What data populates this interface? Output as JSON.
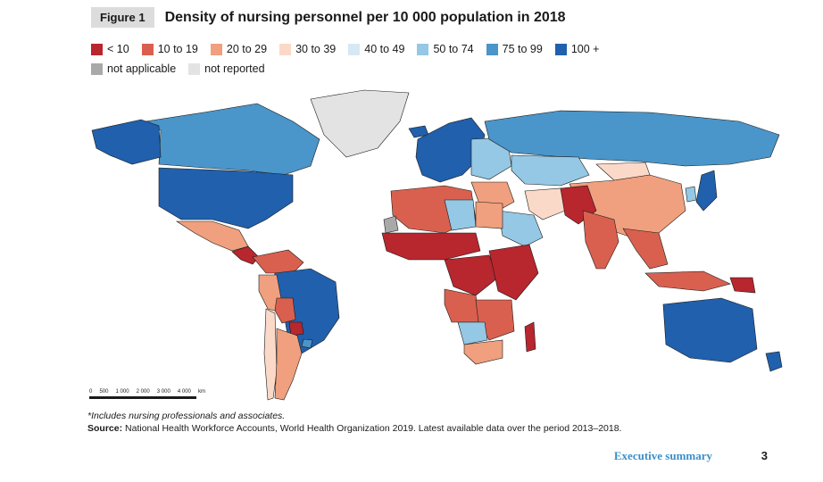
{
  "figure": {
    "label": "Figure 1",
    "title": "Density of nursing personnel per 10 000 population in 2018"
  },
  "legend": {
    "row1": [
      {
        "label": "< 10",
        "color": "#b8262e"
      },
      {
        "label": "10 to 19",
        "color": "#d9604f"
      },
      {
        "label": "20 to 29",
        "color": "#f0a07e"
      },
      {
        "label": "30 to 39",
        "color": "#fbd9c8"
      },
      {
        "label": "40 to 49",
        "color": "#d6e8f4"
      },
      {
        "label": "50 to 74",
        "color": "#95c8e4"
      },
      {
        "label": "75 to 99",
        "color": "#4a95c9"
      },
      {
        "label": "100 +",
        "color": "#2060ac"
      }
    ],
    "row2": [
      {
        "label": "not applicable",
        "color": "#a9a9a9"
      },
      {
        "label": "not reported",
        "color": "#e3e3e3"
      }
    ]
  },
  "map": {
    "regions": [
      {
        "name": "Canada",
        "category": "75 to 99"
      },
      {
        "name": "Alaska",
        "category": "100 +"
      },
      {
        "name": "United States",
        "category": "100 +"
      },
      {
        "name": "Greenland",
        "category": "not reported"
      },
      {
        "name": "Mexico",
        "category": "20 to 29"
      },
      {
        "name": "Central America",
        "category": "< 10"
      },
      {
        "name": "Northern South America",
        "category": "10 to 19"
      },
      {
        "name": "Brazil",
        "category": "100 +"
      },
      {
        "name": "Peru",
        "category": "20 to 29"
      },
      {
        "name": "Bolivia",
        "category": "10 to 19"
      },
      {
        "name": "Paraguay",
        "category": "< 10"
      },
      {
        "name": "Chile",
        "category": "30 to 39"
      },
      {
        "name": "Argentina",
        "category": "20 to 29"
      },
      {
        "name": "Uruguay",
        "category": "75 to 99"
      },
      {
        "name": "Iceland",
        "category": "100 +"
      },
      {
        "name": "Western Europe",
        "category": "100 +"
      },
      {
        "name": "Eastern Europe",
        "category": "50 to 74"
      },
      {
        "name": "Russia",
        "category": "75 to 99"
      },
      {
        "name": "Kazakhstan",
        "category": "50 to 74"
      },
      {
        "name": "Mongolia",
        "category": "30 to 39"
      },
      {
        "name": "China",
        "category": "20 to 29"
      },
      {
        "name": "Japan",
        "category": "100 +"
      },
      {
        "name": "Korea",
        "category": "50 to 74"
      },
      {
        "name": "Middle East",
        "category": "20 to 29"
      },
      {
        "name": "Saudi Arabia",
        "category": "50 to 74"
      },
      {
        "name": "Iran",
        "category": "30 to 39"
      },
      {
        "name": "Pakistan/Afghanistan",
        "category": "< 10"
      },
      {
        "name": "India",
        "category": "10 to 19"
      },
      {
        "name": "Southeast Asia",
        "category": "10 to 19"
      },
      {
        "name": "Indonesia",
        "category": "10 to 19"
      },
      {
        "name": "Papua New Guinea",
        "category": "< 10"
      },
      {
        "name": "Australia",
        "category": "100 +"
      },
      {
        "name": "New Zealand",
        "category": "100 +"
      },
      {
        "name": "North Africa",
        "category": "10 to 19"
      },
      {
        "name": "Libya",
        "category": "50 to 74"
      },
      {
        "name": "Egypt",
        "category": "20 to 29"
      },
      {
        "name": "Western Sahara",
        "category": "not applicable"
      },
      {
        "name": "Sahel",
        "category": "< 10"
      },
      {
        "name": "Central Africa",
        "category": "< 10"
      },
      {
        "name": "East Africa",
        "category": "< 10"
      },
      {
        "name": "Angola/Congo",
        "category": "10 to 19"
      },
      {
        "name": "Southern Africa",
        "category": "10 to 19"
      },
      {
        "name": "South Africa",
        "category": "20 to 29"
      },
      {
        "name": "Botswana/Namibia",
        "category": "50 to 74"
      },
      {
        "name": "Madagascar",
        "category": "< 10"
      }
    ]
  },
  "scale": {
    "labels": [
      "0",
      "500",
      "1 000",
      "2 000",
      "3 000",
      "4 000"
    ],
    "unit": "km"
  },
  "note": "*Includes nursing professionals and associates.",
  "source": {
    "label": "Source:",
    "text": "National Health Workforce Accounts, World Health Organization 2019. Latest available data over the period 2013–2018."
  },
  "footer": {
    "section": "Executive summary",
    "page": "3"
  }
}
